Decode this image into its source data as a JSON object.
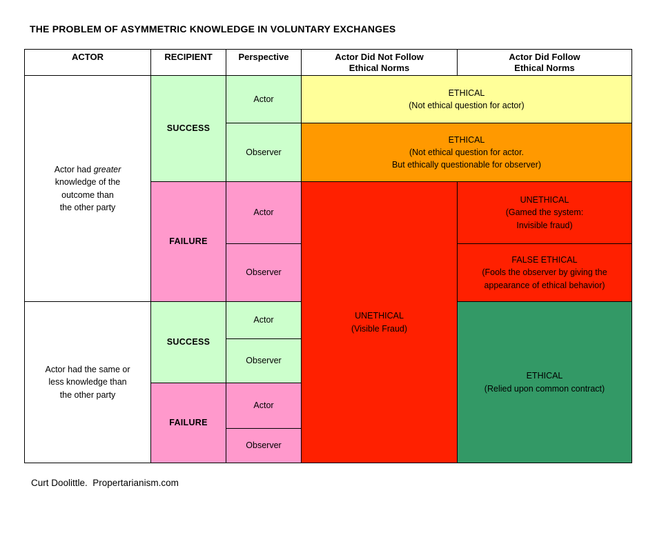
{
  "title": "THE PROBLEM OF ASYMMETRIC KNOWLEDGE IN VOLUNTARY EXCHANGES",
  "footer": "Curt Doolittle.  Propertarianism.com",
  "colors": {
    "ethical_yellow": "#FFFF99",
    "ethical_orange": "#FF9900",
    "unethical_red": "#FF2000",
    "success_green": "#CCFFCC",
    "failure_pink": "#FF99CC",
    "ethical_dark_green": "#339966",
    "border": "#000000"
  },
  "table": {
    "headers": {
      "actor": "ACTOR",
      "recipient": "RECIPIENT",
      "perspective": "Perspective",
      "not_follow": [
        "Actor Did Not Follow",
        "Ethical Norms"
      ],
      "follow": [
        "Actor Did Follow",
        "Ethical Norms"
      ]
    },
    "actor_groups": {
      "greater": {
        "line1_prefix": "Actor had ",
        "line1_italic": "greater",
        "lines_rest": [
          "knowledge of the",
          "outcome than",
          "the other party"
        ]
      },
      "same_or_less": {
        "lines": [
          "Actor had the same or",
          "less knowledge than",
          "the other party"
        ]
      }
    },
    "recipient_labels": {
      "success": "SUCCESS",
      "failure": "FAILURE"
    },
    "perspective_labels": {
      "actor": "Actor",
      "observer": "Observer"
    },
    "outcomes": {
      "success_actor": {
        "title": "ETHICAL",
        "lines": [
          "(Not ethical question for actor)"
        ]
      },
      "success_observer": {
        "title": "ETHICAL",
        "lines": [
          "(Not ethical question for actor.",
          "But ethically questionable for observer)"
        ]
      },
      "visible_fraud": {
        "title": "UNETHICAL",
        "lines": [
          "(Visible Fraud)"
        ]
      },
      "invisible_fraud": {
        "title": "UNETHICAL",
        "lines": [
          "(Gamed the system:",
          "Invisible fraud)"
        ]
      },
      "false_ethical": {
        "title": "FALSE ETHICAL",
        "lines": [
          "(Fools the observer by giving the",
          "appearance of ethical behavior)"
        ]
      },
      "common_contract": {
        "title": "ETHICAL",
        "lines": [
          "(Relied upon common contract)"
        ]
      }
    }
  }
}
